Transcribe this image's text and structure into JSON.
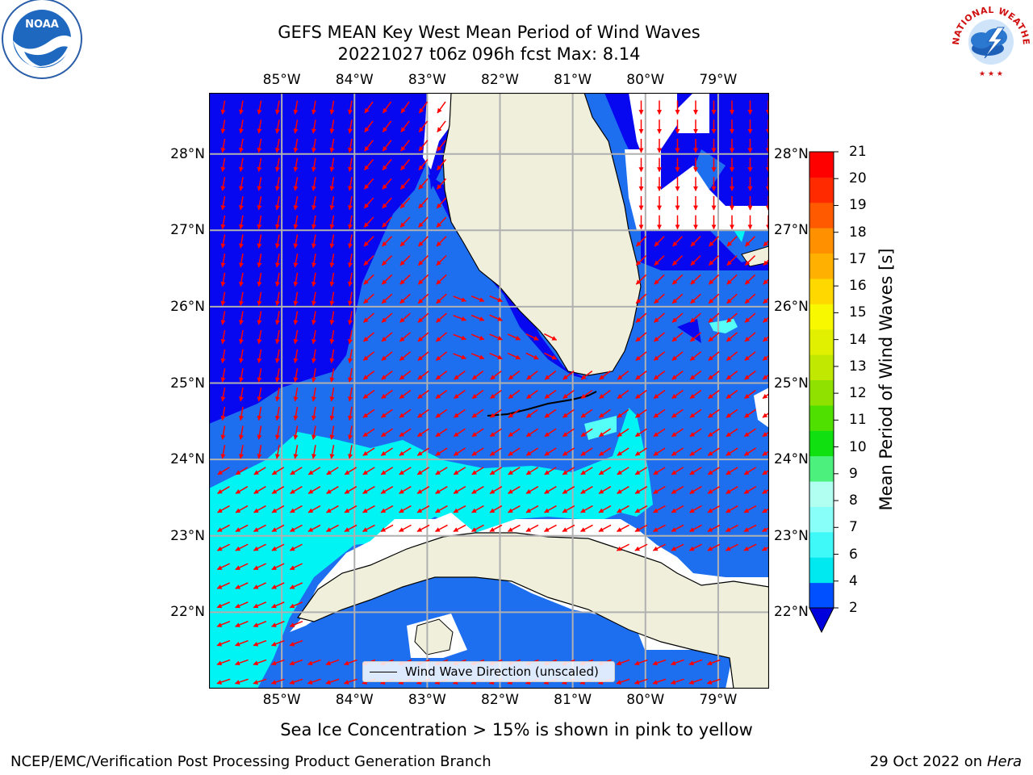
{
  "title": {
    "line1": "GEFS MEAN Key West Mean Period of Wind Waves",
    "line2": "20221027 t06z 096h fcst   Max: 8.14"
  },
  "map": {
    "lon_labels": [
      "85°W",
      "84°W",
      "83°W",
      "82°W",
      "81°W",
      "80°W",
      "79°W"
    ],
    "lat_labels": [
      "28°N",
      "27°N",
      "26°N",
      "25°N",
      "24°N",
      "23°N",
      "22°N"
    ],
    "extent": {
      "lon_min": -86.0,
      "lon_max": -78.3,
      "lat_min": 21.0,
      "lat_max": 28.8
    },
    "colors": {
      "land": "#efefdc",
      "band_2_4": "#1e6ff0",
      "band_below_2": "#0808f0",
      "band_4_6": "#00f4f4",
      "band_6_8": "#55fff8",
      "arrows": "#ff0000",
      "gridlines": "#b0b0b0"
    }
  },
  "colorbar": {
    "label": "Mean Period of Wind Waves [s]",
    "ticks": [
      "2",
      "4",
      "6",
      "7",
      "8",
      "9",
      "10",
      "11",
      "12",
      "13",
      "14",
      "15",
      "16",
      "17",
      "18",
      "19",
      "20",
      "21"
    ],
    "colors": [
      "#0050ff",
      "#00e8f0",
      "#3ff8f8",
      "#88fff8",
      "#b0fff0",
      "#4cf07c",
      "#10e010",
      "#50e000",
      "#90e000",
      "#c0e800",
      "#e0f000",
      "#f8f800",
      "#ffd800",
      "#ffb000",
      "#ff9000",
      "#ff5a00",
      "#ff2a00",
      "#ff0000"
    ],
    "extend_color": "#0000dd"
  },
  "legend": {
    "label": "Wind Wave Direction (unscaled)"
  },
  "subtitle": "Sea Ice Concentration > 15% is shown in pink to yellow",
  "footer": {
    "left": "NCEP/EMC/Verification Post Processing Product Generation Branch",
    "right_prefix": "29 Oct 2022 on ",
    "right_machine": "Hera"
  },
  "logos": {
    "noaa_text": "NOAA",
    "nws_text": "NATIONAL WEATHER SERVICE"
  }
}
